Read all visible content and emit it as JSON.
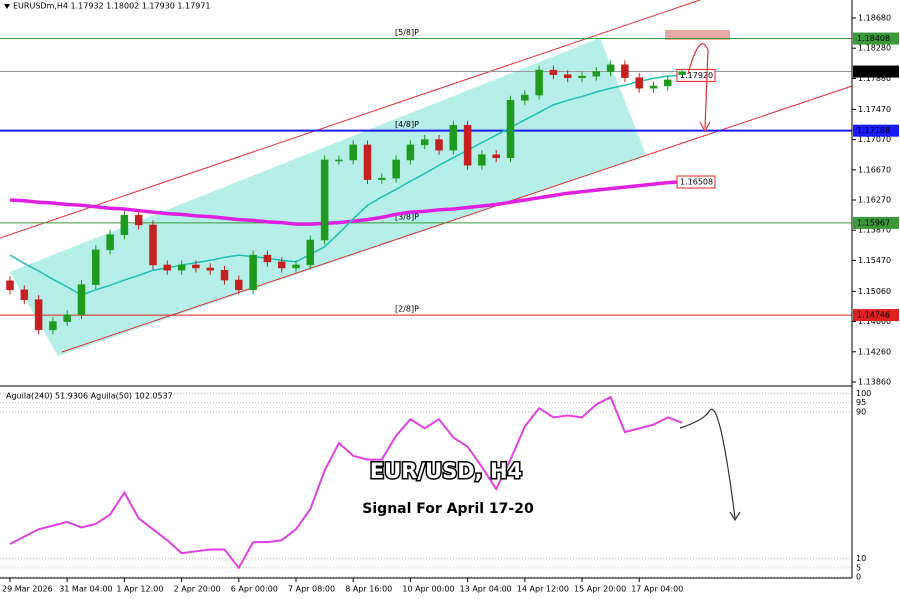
{
  "chart_data": [
    {
      "type": "candlestick",
      "title": "EURUSDm,H4  1.17932 1.18002 1.17930 1.17971",
      "ylim": [
        1.1382,
        1.18892
      ],
      "yticks": [
        {
          "value": 1.1868,
          "label": "1.18680"
        },
        {
          "value": 1.1828,
          "label": "1.18280"
        },
        {
          "value": 1.1788,
          "label": "1.17880"
        },
        {
          "value": 1.1747,
          "label": "1.17470"
        },
        {
          "value": 1.1707,
          "label": "1.17070"
        },
        {
          "value": 1.1667,
          "label": "1.16670"
        },
        {
          "value": 1.1627,
          "label": "1.16270"
        },
        {
          "value": 1.1587,
          "label": "1.15870"
        },
        {
          "value": 1.1547,
          "label": "1.15470"
        },
        {
          "value": 1.1506,
          "label": "1.15060"
        },
        {
          "value": 1.1466,
          "label": "1.14660"
        },
        {
          "value": 1.1426,
          "label": "1.14260"
        },
        {
          "value": 1.1386,
          "label": "1.13860"
        }
      ],
      "up_color": "#1f9a1f",
      "down_color": "#c42020",
      "open": [
        1.152,
        1.1508,
        1.1495,
        1.1455,
        1.1466,
        1.1475,
        1.1515,
        1.1561,
        1.1581,
        1.1607,
        1.1594,
        1.1541,
        1.1534,
        1.1541,
        1.1537,
        1.1534,
        1.1521,
        1.1508,
        1.1554,
        1.1545,
        1.1537,
        1.1541,
        1.1574,
        1.168,
        1.168,
        1.17,
        1.1654,
        1.1656,
        1.168,
        1.17,
        1.1707,
        1.1693,
        1.1726,
        1.1673,
        1.1687,
        1.1683,
        1.1759,
        1.1766,
        1.1799,
        1.1793,
        1.1789,
        1.1791,
        1.1797,
        1.1806,
        1.1789,
        1.1775,
        1.1778,
        1.1793
      ],
      "high": [
        1.1526,
        1.1514,
        1.1501,
        1.1472,
        1.1481,
        1.1521,
        1.1567,
        1.1587,
        1.1613,
        1.1613,
        1.16,
        1.1547,
        1.1547,
        1.1547,
        1.1543,
        1.154,
        1.1527,
        1.156,
        1.156,
        1.1551,
        1.1547,
        1.158,
        1.1686,
        1.1686,
        1.1706,
        1.1706,
        1.1662,
        1.1686,
        1.1706,
        1.1713,
        1.1713,
        1.1732,
        1.1732,
        1.1693,
        1.1693,
        1.1765,
        1.1772,
        1.1805,
        1.1805,
        1.1799,
        1.1797,
        1.1803,
        1.1812,
        1.1812,
        1.1795,
        1.1784,
        1.1792,
        1.18
      ],
      "low": [
        1.1502,
        1.1489,
        1.1449,
        1.1449,
        1.146,
        1.1469,
        1.1509,
        1.1555,
        1.1575,
        1.1588,
        1.1535,
        1.1528,
        1.1528,
        1.1531,
        1.1528,
        1.1515,
        1.1502,
        1.1502,
        1.1539,
        1.1531,
        1.1531,
        1.1535,
        1.1568,
        1.1674,
        1.1674,
        1.1648,
        1.1648,
        1.165,
        1.1674,
        1.1694,
        1.1687,
        1.1687,
        1.1667,
        1.1667,
        1.1677,
        1.1677,
        1.1753,
        1.176,
        1.1787,
        1.1783,
        1.1783,
        1.1785,
        1.1791,
        1.1783,
        1.1769,
        1.1769,
        1.1772,
        1.1793
      ],
      "close": [
        1.1508,
        1.1495,
        1.1455,
        1.1466,
        1.1475,
        1.1515,
        1.1561,
        1.1581,
        1.1607,
        1.1594,
        1.1541,
        1.1534,
        1.1541,
        1.1537,
        1.1534,
        1.1521,
        1.1508,
        1.1554,
        1.1545,
        1.1537,
        1.1541,
        1.1574,
        1.168,
        1.168,
        1.17,
        1.1654,
        1.1656,
        1.168,
        1.17,
        1.1707,
        1.1693,
        1.1726,
        1.1673,
        1.1687,
        1.1683,
        1.1759,
        1.1766,
        1.1799,
        1.1793,
        1.1789,
        1.1791,
        1.1797,
        1.1806,
        1.1789,
        1.1775,
        1.1778,
        1.1786,
        1.1797
      ],
      "lines": [
        {
          "color": "#e020e0",
          "width": 3.5,
          "values": [
            1.1627,
            1.1626,
            1.1624,
            1.1623,
            1.1621,
            1.162,
            1.1618,
            1.1616,
            1.1615,
            1.1613,
            1.1611,
            1.1609,
            1.1608,
            1.1606,
            1.1605,
            1.1603,
            1.1601,
            1.16,
            1.1598,
            1.1597,
            1.1595,
            1.1595,
            1.1596,
            1.1597,
            1.1599,
            1.1601,
            1.1604,
            1.1608,
            1.1611,
            1.1612,
            1.1614,
            1.1615,
            1.1617,
            1.1619,
            1.1621,
            1.1624,
            1.1627,
            1.163,
            1.1633,
            1.1636,
            1.1638,
            1.164,
            1.1642,
            1.1644,
            1.1646,
            1.1648,
            1.165,
            1.1651
          ],
          "last_label": {
            "value": 1.16508,
            "label": "1.16508"
          }
        },
        {
          "color": "#20c0b0",
          "width": 1.5,
          "values": [
            1.1554,
            1.1543,
            1.1533,
            1.1522,
            1.1512,
            1.1501,
            1.1508,
            1.1514,
            1.1521,
            1.1527,
            1.1534,
            1.1537,
            1.1541,
            1.1544,
            1.1547,
            1.1551,
            1.1554,
            1.1552,
            1.155,
            1.1547,
            1.1545,
            1.1555,
            1.1565,
            1.1583,
            1.1602,
            1.162,
            1.1631,
            1.1641,
            1.1652,
            1.1662,
            1.1673,
            1.1683,
            1.1693,
            1.1703,
            1.1713,
            1.1723,
            1.1733,
            1.1743,
            1.1753,
            1.1759,
            1.1764,
            1.177,
            1.1775,
            1.1779,
            1.1784,
            1.1788,
            1.1791,
            1.1792
          ],
          "last_label": {
            "value": 1.1792,
            "label": "1.17920"
          }
        }
      ],
      "levels": [
        {
          "value": 1.18408,
          "color": "#3a9a3a",
          "name": "[5/8]P"
        },
        {
          "value": 1.17971,
          "color": "#000000"
        },
        {
          "value": 1.17188,
          "color": "#1a1aff",
          "name": "[4/8]P"
        },
        {
          "value": 1.15967,
          "color": "#3a9a3a",
          "name": "[3/8]P"
        },
        {
          "value": 1.14746,
          "color": "#e02020",
          "name": "[2/8]P"
        }
      ]
    },
    {
      "type": "line",
      "title": "Aguila(240) 51.9306  Aguila(50) 102.0537",
      "color": "#e040e0",
      "values": [
        18,
        22,
        26,
        28,
        30,
        27,
        29,
        34,
        46,
        32,
        26,
        20,
        13,
        14,
        15,
        15,
        5,
        19,
        19,
        20,
        26,
        37,
        58,
        73,
        66,
        64,
        64,
        77,
        86,
        81,
        86,
        76,
        71,
        60,
        48,
        64,
        82,
        92,
        87,
        88,
        87,
        94,
        98,
        79,
        81,
        83,
        87,
        84
      ],
      "ylim": [
        0,
        103
      ],
      "yticks": [
        100,
        95,
        90,
        10,
        5,
        0
      ],
      "categories": [
        "29 Mar 2026",
        null,
        null,
        null,
        "31 Mar 04:00",
        null,
        null,
        null,
        "1 Apr 12:00",
        null,
        null,
        null,
        "2 Apr 20:00",
        null,
        null,
        null,
        "6 Apr 00:00",
        null,
        null,
        null,
        "7 Apr 08:00",
        null,
        null,
        null,
        "8 Apr 16:00",
        null,
        null,
        null,
        "10 Apr 00:00",
        null,
        null,
        null,
        "13 Apr 04:00",
        null,
        null,
        null,
        "14 Apr 12:00",
        null,
        null,
        null,
        "15 Apr 20:00",
        null,
        null,
        null,
        "17 Apr 04:00",
        null,
        null,
        null
      ],
      "annotations": [
        "EUR/USD, H4",
        "Signal For April 17-20"
      ]
    }
  ]
}
